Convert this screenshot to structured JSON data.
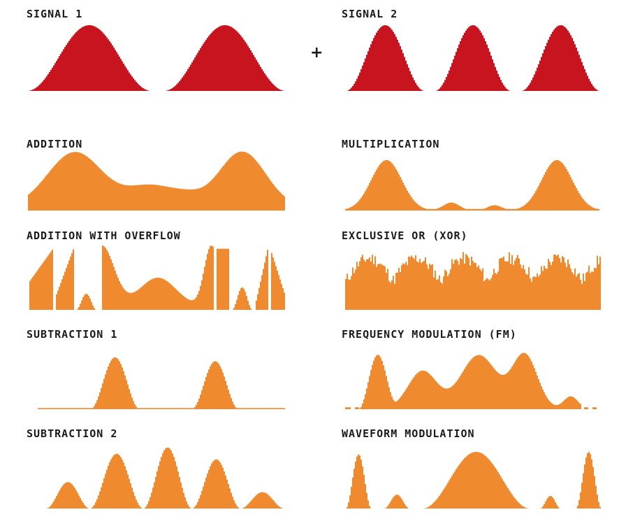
{
  "colors": {
    "signal": "#c8141e",
    "result": "#f08a2e",
    "text": "#1a1a1a"
  },
  "operator": "+",
  "panels": [
    {
      "id": "signal-1",
      "label": "SIGNAL 1",
      "kind": "signal",
      "waveform": "signal1"
    },
    {
      "id": "signal-2",
      "label": "SIGNAL 2",
      "kind": "signal",
      "waveform": "signal2"
    },
    {
      "id": "addition",
      "label": "ADDITION",
      "kind": "result",
      "waveform": "addition"
    },
    {
      "id": "multiplication",
      "label": "MULTIPLICATION",
      "kind": "result",
      "waveform": "multiplication"
    },
    {
      "id": "addition-overflow",
      "label": "ADDITION WITH OVERFLOW",
      "kind": "result",
      "waveform": "overflow"
    },
    {
      "id": "xor",
      "label": "EXCLUSIVE OR (XOR)",
      "kind": "result",
      "waveform": "xor"
    },
    {
      "id": "subtraction-1",
      "label": "SUBTRACTION 1",
      "kind": "result",
      "waveform": "sub1"
    },
    {
      "id": "fm",
      "label": "FREQUENCY MODULATION (FM)",
      "kind": "result",
      "waveform": "fm"
    },
    {
      "id": "subtraction-2",
      "label": "SUBTRACTION 2",
      "kind": "result",
      "waveform": "sub2"
    },
    {
      "id": "waveform-modulation",
      "label": "WAVEFORM MODULATION",
      "kind": "result",
      "waveform": "wavemod"
    }
  ]
}
